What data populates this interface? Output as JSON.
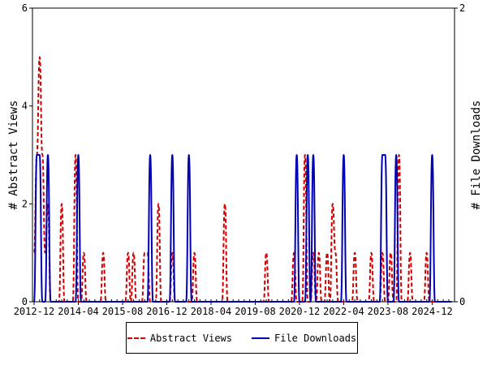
{
  "chart_data": {
    "type": "line",
    "title": "",
    "x_start": "2012-12",
    "x_interval": "month",
    "x_tick_labels": [
      "2012-12",
      "2014-04",
      "2015-08",
      "2016-12",
      "2018-04",
      "2019-08",
      "2020-12",
      "2022-04",
      "2023-08",
      "2024-12"
    ],
    "ylabel_left": "# Abstract Views",
    "ylabel_right": "# File Downloads",
    "ylim_left": [
      0,
      6
    ],
    "ylim_right": [
      0,
      2
    ],
    "yticks_left": [
      "0",
      "2",
      "4",
      "6"
    ],
    "yticks_right": [
      "0",
      "2"
    ],
    "legend_position": "bottom",
    "series": [
      {
        "name": "Abstract Views",
        "axis": "left",
        "color": "#cc0000",
        "style": "dashed",
        "values": [
          1,
          3,
          5,
          3,
          1,
          2,
          0,
          0,
          0,
          0,
          2,
          0,
          0,
          0,
          0,
          3,
          0,
          0,
          1,
          0,
          0,
          0,
          0,
          0,
          0,
          1,
          0,
          0,
          0,
          0,
          0,
          0,
          0,
          0,
          1,
          0,
          1,
          0,
          0,
          0,
          1,
          1,
          0,
          0,
          0,
          2,
          0,
          0,
          0,
          0,
          1,
          0,
          0,
          0,
          0,
          0,
          0,
          0,
          1,
          0,
          0,
          0,
          0,
          0,
          0,
          0,
          0,
          0,
          0,
          2,
          0,
          0,
          0,
          0,
          0,
          0,
          0,
          0,
          0,
          0,
          0,
          0,
          0,
          0,
          1,
          0,
          0,
          0,
          0,
          0,
          0,
          0,
          0,
          0,
          1,
          0,
          0,
          0,
          3,
          0,
          0,
          1,
          0,
          1,
          0,
          0,
          1,
          0,
          2,
          1,
          0,
          0,
          0,
          0,
          0,
          0,
          1,
          0,
          0,
          0,
          0,
          0,
          1,
          0,
          0,
          0,
          1,
          0,
          0,
          1,
          0,
          0,
          3,
          0,
          0,
          0,
          1,
          0,
          0,
          0,
          0,
          0,
          1,
          0,
          0,
          0,
          0,
          0,
          0,
          0,
          0,
          0
        ]
      },
      {
        "name": "File Downloads",
        "axis": "right",
        "color": "#0000b3",
        "style": "solid",
        "values": [
          0,
          1,
          1,
          0,
          0,
          1,
          0,
          0,
          0,
          0,
          0,
          0,
          0,
          0,
          0,
          0,
          1,
          0,
          0,
          0,
          0,
          0,
          0,
          0,
          0,
          0,
          0,
          0,
          0,
          0,
          0,
          0,
          0,
          0,
          0,
          0,
          0,
          0,
          0,
          0,
          0,
          0,
          1,
          0,
          0,
          0,
          0,
          0,
          0,
          0,
          1,
          0,
          0,
          0,
          0,
          0,
          1,
          0,
          0,
          0,
          0,
          0,
          0,
          0,
          0,
          0,
          0,
          0,
          0,
          0,
          0,
          0,
          0,
          0,
          0,
          0,
          0,
          0,
          0,
          0,
          0,
          0,
          0,
          0,
          0,
          0,
          0,
          0,
          0,
          0,
          0,
          0,
          0,
          0,
          0,
          1,
          0,
          0,
          0,
          1,
          0,
          1,
          0,
          0,
          0,
          0,
          0,
          0,
          0,
          0,
          0,
          0,
          1,
          0,
          0,
          0,
          0,
          0,
          0,
          0,
          0,
          0,
          0,
          0,
          0,
          0,
          1,
          1,
          0,
          0,
          0,
          1,
          0,
          0,
          0,
          0,
          0,
          0,
          0,
          0,
          0,
          0,
          0,
          0,
          1,
          0,
          0,
          0,
          0,
          0,
          0,
          0
        ]
      }
    ]
  }
}
